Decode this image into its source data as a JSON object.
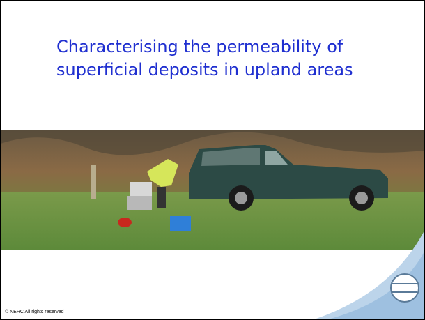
{
  "slide": {
    "title": "Characterising the permeability of superficial deposits in upland areas",
    "footer": "© NERC All rights reserved"
  }
}
